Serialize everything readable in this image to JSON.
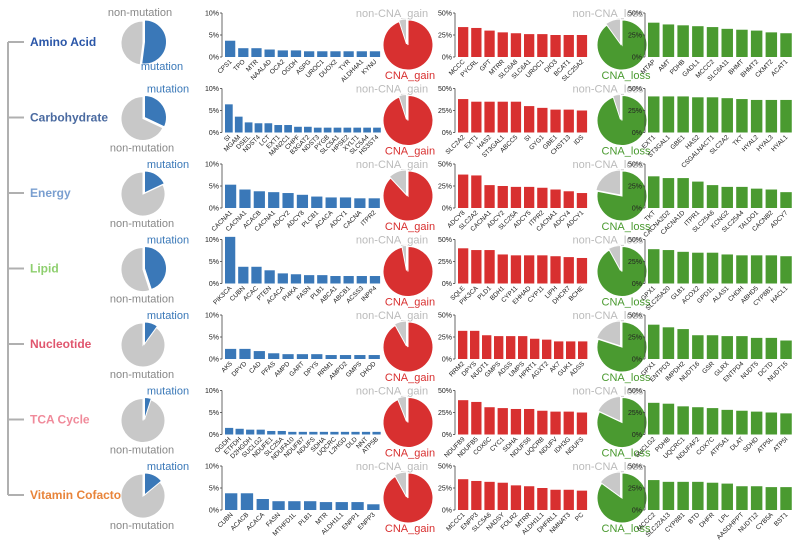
{
  "colors": {
    "mutation": "#3a78b8",
    "non": "#c8c8c8",
    "gain": "#d83030",
    "loss": "#4a9a30",
    "tree": "#b0b0b0"
  },
  "pie_labels": {
    "mutation": "mutation",
    "non_mutation": "non-mutation",
    "gain": "CNA_gain",
    "non_gain": "non-CNA_gain",
    "loss": "CNA_loss",
    "non_loss": "non-CNA_loss"
  },
  "chart_data": [
    {
      "type": "bar+pie",
      "category": "Amino Acid",
      "category_color": "#2a56a8",
      "mutation_fraction": 0.52,
      "cna_gain_fraction": 0.95,
      "cna_loss_fraction": 0.9,
      "mutation": {
        "ylim": [
          0,
          10
        ],
        "ticks": [
          "0%",
          "5%",
          "10%"
        ],
        "genes": [
          "CPS1",
          "TPO",
          "MTR",
          "NAALAD",
          "OCA2",
          "OGDH",
          "ASPG",
          "UROC1",
          "DUOX2",
          "TYR",
          "ALDH4A1",
          "KYNU"
        ],
        "values": [
          3.7,
          2.0,
          2.0,
          1.7,
          1.5,
          1.5,
          1.3,
          1.3,
          1.3,
          1.3,
          1.3,
          1.3
        ]
      },
      "gain": {
        "ylim": [
          0,
          50
        ],
        "ticks": [
          "0%",
          "25%",
          "50%"
        ],
        "genes": [
          "MCCC",
          "PYCRL",
          "GPT",
          "MTRR",
          "SLC6A8",
          "SLC6A1",
          "UROC1",
          "DIO3",
          "BCAT1",
          "SLC25A2"
        ],
        "values": [
          34,
          33,
          30,
          28,
          27,
          26,
          26,
          25,
          25,
          25
        ]
      },
      "loss": {
        "ylim": [
          0,
          50
        ],
        "ticks": [
          "0%",
          "25%",
          "50%"
        ],
        "genes": [
          "MTAP",
          "AMT",
          "PDHB",
          "GADL1",
          "MCCC2",
          "SLC6A11",
          "BHMT",
          "BHMT2",
          "CKMT2",
          "ACAT1"
        ],
        "values": [
          39,
          37,
          36,
          35,
          34,
          32,
          31,
          30,
          28,
          27
        ]
      }
    },
    {
      "type": "bar+pie",
      "category": "Carbohydrate",
      "category_color": "#4a6aa0",
      "mutation_fraction": 0.32,
      "cna_gain_fraction": 0.95,
      "cna_loss_fraction": 0.95,
      "mutation": {
        "ylim": [
          0,
          10
        ],
        "ticks": [
          "0%",
          "5%",
          "10%"
        ],
        "genes": [
          "SI",
          "MGAM",
          "DSEL",
          "NDST4",
          "LCT",
          "EXT1",
          "MAN2C1",
          "CHPF",
          "B3GAT2",
          "NDST3",
          "PYGB",
          "SLC5A1",
          "HPSE2",
          "XYLT1",
          "SLC5A4",
          "HS3ST4"
        ],
        "values": [
          6.4,
          3.6,
          2.3,
          2.1,
          2.1,
          1.7,
          1.7,
          1.3,
          1.3,
          1.1,
          1.1,
          1.1,
          1.1,
          1.1,
          1.1,
          1.1
        ]
      },
      "gain": {
        "ylim": [
          0,
          50
        ],
        "ticks": [
          "0%",
          "25%",
          "50%"
        ],
        "genes": [
          "SLC2A2",
          "EXT1",
          "HAS2",
          "ST3GAL1",
          "ABCC5",
          "SI",
          "GYG1",
          "GBE1",
          "CHST13",
          "IDS"
        ],
        "values": [
          38,
          35,
          35,
          35,
          35,
          30,
          28,
          26,
          26,
          25
        ]
      },
      "loss": {
        "ylim": [
          0,
          50
        ],
        "ticks": [
          "0%",
          "25%",
          "50%"
        ],
        "genes": [
          "EXT1",
          "ST3GAL1",
          "GBE1",
          "HAS2",
          "CSGALNACT1",
          "SLC2A2",
          "TKT",
          "HYAL2",
          "HYAL3",
          "HYAL1"
        ],
        "values": [
          41,
          41,
          41,
          40,
          40,
          39,
          38,
          37,
          37,
          37
        ]
      }
    },
    {
      "type": "bar+pie",
      "category": "Energy",
      "category_color": "#7a9fd0",
      "mutation_fraction": 0.18,
      "cna_gain_fraction": 0.88,
      "cna_loss_fraction": 0.78,
      "mutation": {
        "ylim": [
          0,
          10
        ],
        "ticks": [
          "0%",
          "5%",
          "10%"
        ],
        "genes": [
          "CACNA1",
          "CACNA1",
          "ACACB",
          "CACNA1",
          "ADCY2",
          "ADCY8",
          "PLCB1",
          "ACACA",
          "ADCY1",
          "CACNA",
          "ITPR2"
        ],
        "values": [
          5.3,
          4.2,
          3.8,
          3.6,
          3.4,
          3.0,
          2.6,
          2.4,
          2.4,
          2.2,
          2.2
        ]
      },
      "gain": {
        "ylim": [
          0,
          50
        ],
        "ticks": [
          "0%",
          "25%",
          "50%"
        ],
        "genes": [
          "ADCY8",
          "SLC2A2",
          "CACNA1",
          "ADCY2",
          "SLC25A",
          "ADCY5",
          "ITPR2",
          "CACNA1",
          "ADCY4",
          "ADCY1"
        ],
        "values": [
          38,
          37,
          26,
          25,
          24,
          24,
          23,
          21,
          19,
          17
        ]
      },
      "loss": {
        "ylim": [
          0,
          50
        ],
        "ticks": [
          "0%",
          "25%",
          "50%"
        ],
        "genes": [
          "TKT",
          "CACNA2D2",
          "CACNA1D",
          "ITPR1",
          "SLC25A6",
          "KCNG2",
          "SLC25A4",
          "TALDO1",
          "CACNB2",
          "ADCY7"
        ],
        "values": [
          36,
          34,
          34,
          30,
          26,
          24,
          24,
          22,
          21,
          18
        ]
      }
    },
    {
      "type": "bar+pie",
      "category": "Lipid",
      "category_color": "#8ecf6e",
      "mutation_fraction": 0.45,
      "cna_gain_fraction": 0.97,
      "cna_loss_fraction": 0.92,
      "mutation": {
        "ylim": [
          0,
          10
        ],
        "ticks": [
          "0%",
          "5%",
          "10%"
        ],
        "genes": [
          "PIK3CA",
          "CUBN",
          "ACAC",
          "PTEN",
          "ACACA",
          "PI4KA",
          "FASN",
          "PLB1",
          "ABCA1",
          "ABCB1",
          "ACSS3",
          "INPP4"
        ],
        "values": [
          10.6,
          3.8,
          3.8,
          3.0,
          2.3,
          2.1,
          1.9,
          1.9,
          1.7,
          1.7,
          1.7,
          1.7
        ]
      },
      "gain": {
        "ylim": [
          0,
          50
        ],
        "ticks": [
          "0%",
          "25%",
          "50%"
        ],
        "genes": [
          "SQLE",
          "PIK3CA",
          "PLD1",
          "BDH1",
          "CYP11",
          "EHHAD",
          "CYP11",
          "LIPH",
          "DHCR7",
          "BCHE"
        ],
        "values": [
          40,
          38,
          38,
          33,
          32,
          32,
          32,
          31,
          30,
          29
        ]
      },
      "loss": {
        "ylim": [
          0,
          50
        ],
        "ticks": [
          "0%",
          "25%",
          "50%"
        ],
        "genes": [
          "GPX1",
          "SLC25A20",
          "GLB1",
          "ACOX2",
          "GPD1L",
          "ALAS1",
          "CHDH",
          "ABHD5",
          "CYP8B1",
          "HACL1"
        ],
        "values": [
          39,
          38,
          36,
          35,
          35,
          33,
          32,
          32,
          32,
          31
        ]
      }
    },
    {
      "type": "bar+pie",
      "category": "Nucleotide",
      "category_color": "#e0566e",
      "mutation_fraction": 0.1,
      "cna_gain_fraction": 0.92,
      "cna_loss_fraction": 0.8,
      "mutation": {
        "ylim": [
          0,
          10
        ],
        "ticks": [
          "0%",
          "5%",
          "10%"
        ],
        "genes": [
          "AK5",
          "DPYD",
          "CAD",
          "PFAS",
          "AMPD",
          "GART",
          "DPYS",
          "RRM1",
          "AMPD2",
          "GMPS",
          "DHOD"
        ],
        "values": [
          2.3,
          2.3,
          1.8,
          1.3,
          1.1,
          1.1,
          1.1,
          0.9,
          0.9,
          0.9,
          0.9
        ]
      },
      "gain": {
        "ylim": [
          0,
          50
        ],
        "ticks": [
          "0%",
          "25%",
          "50%"
        ],
        "genes": [
          "RRM2",
          "DPYS",
          "NUDT1",
          "GMPS",
          "ADSS",
          "UMPS",
          "HPRT1",
          "AGXT2",
          "AK7",
          "GUK1",
          "ADSS"
        ],
        "values": [
          32,
          32,
          27,
          26,
          26,
          26,
          23,
          22,
          20,
          20,
          20
        ]
      },
      "loss": {
        "ylim": [
          0,
          50
        ],
        "ticks": [
          "0%",
          "25%",
          "50%"
        ],
        "genes": [
          "GPX1",
          "ENTPD3",
          "IMPDH2",
          "NUDT16",
          "GSR",
          "GLRX",
          "ENTPD4",
          "NUDT5",
          "DCTD",
          "NUDT15"
        ],
        "values": [
          39,
          36,
          34,
          27,
          27,
          26,
          26,
          24,
          24,
          21
        ]
      }
    },
    {
      "type": "bar+pie",
      "category": "TCA Cycle",
      "category_color": "#f08a9a",
      "mutation_fraction": 0.05,
      "cna_gain_fraction": 0.94,
      "cna_loss_fraction": 0.82,
      "mutation": {
        "ylim": [
          0,
          10
        ],
        "ticks": [
          "0%",
          "5%",
          "10%"
        ],
        "genes": [
          "OGDH",
          "ETFDH",
          "D2HGDH",
          "SUCLG2",
          "NDUFE1",
          "SLC25A",
          "NDUFA10",
          "NDUFB7",
          "NDUFS",
          "SDHA",
          "UQCRC",
          "L2HGD",
          "DLD",
          "NNT",
          "ATP5B"
        ],
        "values": [
          1.5,
          1.3,
          1.1,
          1.1,
          0.8,
          0.8,
          0.6,
          0.6,
          0.6,
          0.6,
          0.6,
          0.6,
          0.6,
          0.6,
          0.6
        ]
      },
      "gain": {
        "ylim": [
          0,
          50
        ],
        "ticks": [
          "0%",
          "25%",
          "50%"
        ],
        "genes": [
          "NDUFB9",
          "NDUFB5",
          "COX6C",
          "CYC1",
          "SDHA",
          "NDUFS6",
          "UQCRB",
          "NDUFV",
          "IDH3G",
          "NDUFS"
        ],
        "values": [
          39,
          37,
          31,
          30,
          29,
          29,
          27,
          26,
          26,
          25
        ]
      },
      "loss": {
        "ylim": [
          0,
          50
        ],
        "ticks": [
          "0%",
          "25%",
          "50%"
        ],
        "genes": [
          "SUCLG2",
          "PDHB",
          "UQCRC1",
          "NDUFAF2",
          "COX7C",
          "ATP5A1",
          "DLAT",
          "SDHD",
          "ATP5L",
          "ATP5I"
        ],
        "values": [
          36,
          35,
          32,
          31,
          30,
          28,
          27,
          26,
          25,
          24
        ]
      }
    },
    {
      "type": "bar+pie",
      "category": "Vitamin Cofactor",
      "category_color": "#e8843a",
      "mutation_fraction": 0.14,
      "cna_gain_fraction": 0.92,
      "cna_loss_fraction": 0.85,
      "mutation": {
        "ylim": [
          0,
          10
        ],
        "ticks": [
          "0%",
          "5%",
          "10%"
        ],
        "genes": [
          "CUBN",
          "ACACB",
          "ACACA",
          "FASN",
          "MTHFD1L",
          "PLB1",
          "MTR",
          "ALDH1L1",
          "ENPP1",
          "ENPP3"
        ],
        "values": [
          3.8,
          3.8,
          2.5,
          2.0,
          2.0,
          2.0,
          1.8,
          1.8,
          1.8,
          1.3
        ]
      },
      "gain": {
        "ylim": [
          0,
          50
        ],
        "ticks": [
          "0%",
          "25%",
          "50%"
        ],
        "genes": [
          "MCCC1",
          "ENPP3",
          "SLC5A6",
          "NADSY",
          "FOLR2",
          "MTRR",
          "ALDH1L1",
          "DHFRL1",
          "NMNAT3",
          "PC"
        ],
        "values": [
          35,
          33,
          32,
          31,
          28,
          27,
          25,
          23,
          23,
          22
        ]
      },
      "loss": {
        "ylim": [
          0,
          50
        ],
        "ticks": [
          "0%",
          "25%",
          "50%"
        ],
        "genes": [
          "MCCC2",
          "SLC22A13",
          "CYP8B1",
          "BTD",
          "DHFR",
          "LPL",
          "AASDHPPT",
          "NUDT12",
          "CYB5A",
          "BST1"
        ],
        "values": [
          34,
          32,
          32,
          32,
          31,
          30,
          27,
          27,
          26,
          26
        ]
      }
    }
  ]
}
